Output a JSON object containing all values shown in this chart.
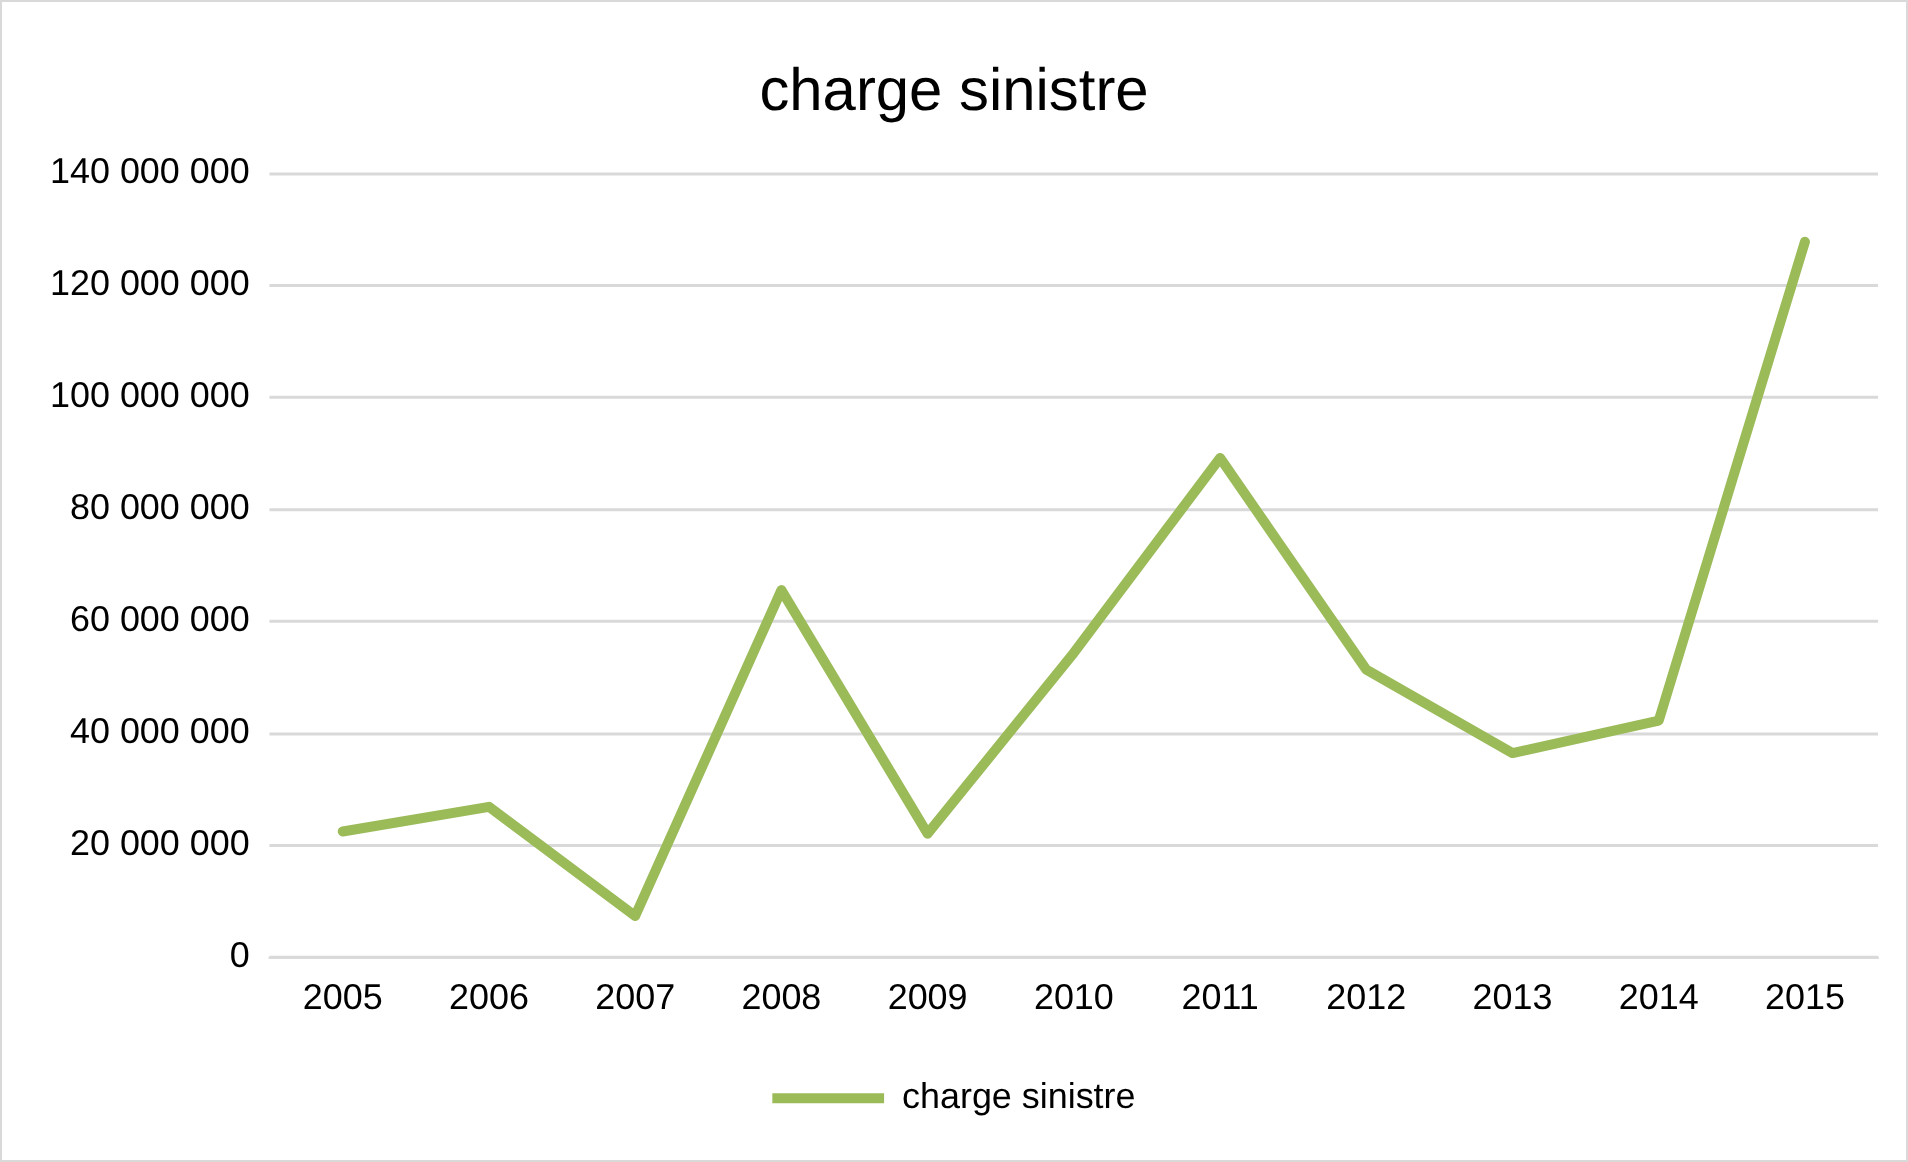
{
  "chart_data": {
    "type": "line",
    "title": "charge sinistre",
    "categories": [
      "2005",
      "2006",
      "2007",
      "2008",
      "2009",
      "2010",
      "2011",
      "2012",
      "2013",
      "2014",
      "2015"
    ],
    "series": [
      {
        "name": "charge sinistre",
        "color": "#9bbb59",
        "values": [
          22500000,
          26900000,
          7400000,
          65600000,
          22100000,
          54400000,
          89200000,
          51400000,
          36500000,
          42300000,
          127800000
        ]
      }
    ],
    "ylim": [
      0,
      140000000
    ],
    "yticks": [
      {
        "value": 0,
        "label": "0"
      },
      {
        "value": 20000000,
        "label": "20 000 000"
      },
      {
        "value": 40000000,
        "label": "40 000 000"
      },
      {
        "value": 60000000,
        "label": "60 000 000"
      },
      {
        "value": 80000000,
        "label": "80 000 000"
      },
      {
        "value": 100000000,
        "label": "100 000 000"
      },
      {
        "value": 120000000,
        "label": "120 000 000"
      },
      {
        "value": 140000000,
        "label": "140 000 000"
      }
    ],
    "grid": "y",
    "legend": "bottom",
    "marker": "none",
    "line_style": "solid"
  }
}
